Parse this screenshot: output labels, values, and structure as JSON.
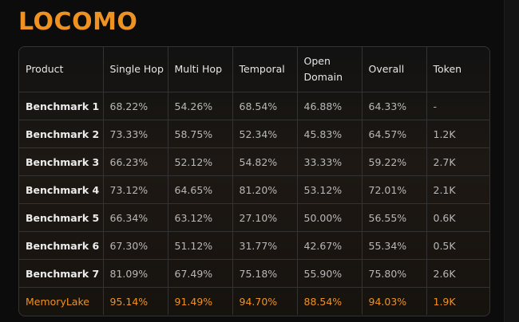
{
  "title": "LOCOMO",
  "colors": {
    "accent": "#ee9221",
    "background": "#0c0c0c",
    "border": "#333333"
  },
  "table": {
    "headers": [
      "Product",
      "Single Hop",
      "Multi Hop",
      "Temporal",
      "Open Domain",
      "Overall",
      "Token"
    ],
    "rows": [
      [
        "Benchmark 1",
        "68.22%",
        "54.26%",
        "68.54%",
        "46.88%",
        "64.33%",
        "-"
      ],
      [
        "Benchmark 2",
        "73.33%",
        "58.75%",
        "52.34%",
        "45.83%",
        "64.57%",
        "1.2K"
      ],
      [
        "Benchmark 3",
        "66.23%",
        "52.12%",
        "54.82%",
        "33.33%",
        "59.22%",
        "2.7K"
      ],
      [
        "Benchmark 4",
        "73.12%",
        "64.65%",
        "81.20%",
        "53.12%",
        "72.01%",
        "2.1K"
      ],
      [
        "Benchmark 5",
        "66.34%",
        "63.12%",
        "27.10%",
        "50.00%",
        "56.55%",
        "0.6K"
      ],
      [
        "Benchmark 6",
        "67.30%",
        "51.12%",
        "31.77%",
        "42.67%",
        "55.34%",
        "0.5K"
      ],
      [
        "Benchmark 7",
        "81.09%",
        "67.49%",
        "75.18%",
        "55.90%",
        "75.80%",
        "2.6K"
      ],
      [
        "MemoryLake",
        "95.14%",
        "91.49%",
        "94.70%",
        "88.54%",
        "94.03%",
        "1.9K"
      ]
    ]
  }
}
